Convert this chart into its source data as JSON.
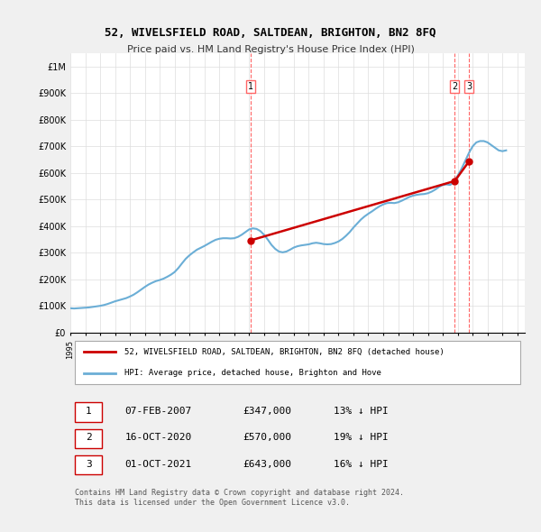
{
  "title": "52, WIVELSFIELD ROAD, SALTDEAN, BRIGHTON, BN2 8FQ",
  "subtitle": "Price paid vs. HM Land Registry's House Price Index (HPI)",
  "ylabel_ticks": [
    "£0",
    "£100K",
    "£200K",
    "£300K",
    "£400K",
    "£500K",
    "£600K",
    "£700K",
    "£800K",
    "£900K",
    "£1M"
  ],
  "ytick_values": [
    0,
    100000,
    200000,
    300000,
    400000,
    500000,
    600000,
    700000,
    800000,
    900000,
    1000000
  ],
  "xlim_start": 1995.0,
  "xlim_end": 2025.5,
  "ylim": [
    0,
    1050000
  ],
  "legend_line1": "52, WIVELSFIELD ROAD, SALTDEAN, BRIGHTON, BN2 8FQ (detached house)",
  "legend_line2": "HPI: Average price, detached house, Brighton and Hove",
  "sale1_date": 2007.1,
  "sale1_price": 347000,
  "sale1_label": "1",
  "sale2_date": 2020.8,
  "sale2_price": 570000,
  "sale2_label": "2",
  "sale3_date": 2021.75,
  "sale3_price": 643000,
  "sale3_label": "3",
  "table_rows": [
    [
      "1",
      "07-FEB-2007",
      "£347,000",
      "13% ↓ HPI"
    ],
    [
      "2",
      "16-OCT-2020",
      "£570,000",
      "19% ↓ HPI"
    ],
    [
      "3",
      "01-OCT-2021",
      "£643,000",
      "16% ↓ HPI"
    ]
  ],
  "footnote": "Contains HM Land Registry data © Crown copyright and database right 2024.\nThis data is licensed under the Open Government Licence v3.0.",
  "hpi_color": "#6baed6",
  "sale_color": "#cc0000",
  "vline_color": "#ff6666",
  "bg_color": "#f0f0f0",
  "plot_bg_color": "#ffffff",
  "hpi_data_x": [
    1995.0,
    1995.25,
    1995.5,
    1995.75,
    1996.0,
    1996.25,
    1996.5,
    1996.75,
    1997.0,
    1997.25,
    1997.5,
    1997.75,
    1998.0,
    1998.25,
    1998.5,
    1998.75,
    1999.0,
    1999.25,
    1999.5,
    1999.75,
    2000.0,
    2000.25,
    2000.5,
    2000.75,
    2001.0,
    2001.25,
    2001.5,
    2001.75,
    2002.0,
    2002.25,
    2002.5,
    2002.75,
    2003.0,
    2003.25,
    2003.5,
    2003.75,
    2004.0,
    2004.25,
    2004.5,
    2004.75,
    2005.0,
    2005.25,
    2005.5,
    2005.75,
    2006.0,
    2006.25,
    2006.5,
    2006.75,
    2007.0,
    2007.25,
    2007.5,
    2007.75,
    2008.0,
    2008.25,
    2008.5,
    2008.75,
    2009.0,
    2009.25,
    2009.5,
    2009.75,
    2010.0,
    2010.25,
    2010.5,
    2010.75,
    2011.0,
    2011.25,
    2011.5,
    2011.75,
    2012.0,
    2012.25,
    2012.5,
    2012.75,
    2013.0,
    2013.25,
    2013.5,
    2013.75,
    2014.0,
    2014.25,
    2014.5,
    2014.75,
    2015.0,
    2015.25,
    2015.5,
    2015.75,
    2016.0,
    2016.25,
    2016.5,
    2016.75,
    2017.0,
    2017.25,
    2017.5,
    2017.75,
    2018.0,
    2018.25,
    2018.5,
    2018.75,
    2019.0,
    2019.25,
    2019.5,
    2019.75,
    2020.0,
    2020.25,
    2020.5,
    2020.75,
    2021.0,
    2021.25,
    2021.5,
    2021.75,
    2022.0,
    2022.25,
    2022.5,
    2022.75,
    2023.0,
    2023.25,
    2023.5,
    2023.75,
    2024.0,
    2024.25
  ],
  "hpi_data_y": [
    92000,
    91000,
    92000,
    93000,
    94000,
    95000,
    97000,
    99000,
    101000,
    104000,
    108000,
    113000,
    118000,
    122000,
    126000,
    130000,
    136000,
    143000,
    152000,
    162000,
    172000,
    181000,
    188000,
    194000,
    198000,
    203000,
    210000,
    218000,
    228000,
    243000,
    261000,
    278000,
    291000,
    302000,
    312000,
    319000,
    326000,
    334000,
    342000,
    349000,
    353000,
    355000,
    355000,
    354000,
    355000,
    360000,
    368000,
    378000,
    388000,
    392000,
    390000,
    382000,
    368000,
    350000,
    330000,
    315000,
    305000,
    302000,
    305000,
    312000,
    320000,
    325000,
    328000,
    330000,
    332000,
    336000,
    338000,
    336000,
    333000,
    332000,
    333000,
    337000,
    343000,
    352000,
    364000,
    378000,
    395000,
    410000,
    425000,
    437000,
    447000,
    456000,
    466000,
    475000,
    482000,
    487000,
    488000,
    487000,
    490000,
    496000,
    503000,
    510000,
    515000,
    518000,
    520000,
    521000,
    524000,
    530000,
    538000,
    548000,
    555000,
    557000,
    555000,
    568000,
    590000,
    615000,
    645000,
    675000,
    700000,
    715000,
    720000,
    720000,
    715000,
    705000,
    695000,
    685000,
    682000,
    685000
  ],
  "sale_data_x": [
    2007.1,
    2020.8,
    2021.75
  ],
  "sale_data_y": [
    347000,
    570000,
    643000
  ]
}
